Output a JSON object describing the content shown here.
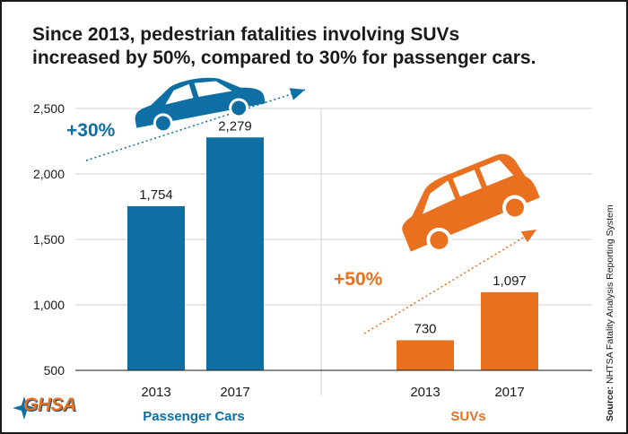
{
  "title_lines": [
    "Since 2013, pedestrian fatalities involving SUVs",
    "increased by 50%, compared to 30% for passenger cars."
  ],
  "source_label": "Source:",
  "source_text": " NHTSA Fatality Analysis Reporting System",
  "logo_text": "GHSA",
  "colors": {
    "cars": "#0e6fa5",
    "suvs": "#e8701f"
  },
  "chart_data": {
    "type": "bar",
    "title": "Since 2013, pedestrian fatalities involving SUVs increased by 50%, compared to 30% for passenger cars.",
    "ylim": [
      500,
      2500
    ],
    "yticks": [
      500,
      1000,
      1500,
      2000,
      2500
    ],
    "ytick_labels": [
      "500",
      "1,000",
      "1,500",
      "2,000",
      "2,500"
    ],
    "grid": true,
    "groups": [
      {
        "name": "Passenger Cars",
        "color": "#0e6fa5",
        "change_label": "+30%",
        "icon": "sedan-icon",
        "bars": [
          {
            "x": "2013",
            "value": 1754,
            "label": "1,754"
          },
          {
            "x": "2017",
            "value": 2279,
            "label": "2,279"
          }
        ]
      },
      {
        "name": "SUVs",
        "color": "#e8701f",
        "change_label": "+50%",
        "icon": "suv-icon",
        "bars": [
          {
            "x": "2013",
            "value": 730,
            "label": "730"
          },
          {
            "x": "2017",
            "value": 1097,
            "label": "1,097"
          }
        ]
      }
    ]
  }
}
